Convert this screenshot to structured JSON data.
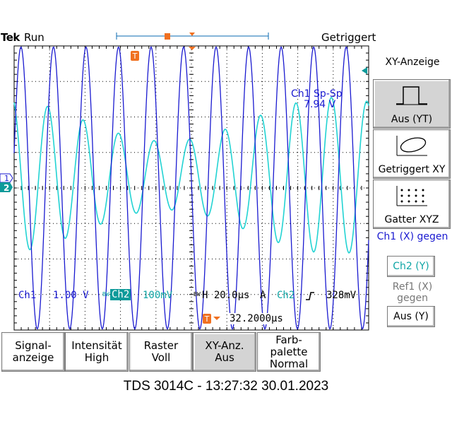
{
  "header": {
    "brand": "Tek",
    "run_state": "Run",
    "trigger_state": "Getriggert"
  },
  "measurement": {
    "label": "Ch1 Sp-Sp",
    "value": "7.94 V"
  },
  "readouts": {
    "ch1_label": "Ch1",
    "ch1_scale": "1.00 V",
    "ch2_prefix": "BW",
    "ch2_label": "Ch2",
    "ch2_scale": "100mV",
    "bw_prefix": "BW",
    "horiz": "H 20.0µs",
    "trig_mode": "A",
    "trig_source": "Ch2",
    "trig_slope_icon": "rising-edge-icon",
    "trig_level": "328mV",
    "trig_pos": "32.2000µs"
  },
  "markers": {
    "ch1": "1",
    "ch2": "2",
    "trigger": "T"
  },
  "side_menu": {
    "title": "XY-Anzeige",
    "buttons": [
      {
        "label": "Aus (YT)",
        "icon": "square-wave-icon",
        "selected": true
      },
      {
        "label": "Getriggert XY",
        "icon": "ellipse-icon",
        "selected": false
      },
      {
        "label": "Gatter XYZ",
        "icon": "dot-grid-icon",
        "selected": false
      }
    ],
    "ch1_text": "Ch1 (X) gegen",
    "ch1_value": "Ch2 (Y)",
    "ref1_text": "Ref1 (X) gegen",
    "ref1_value": "Aus (Y)"
  },
  "bottom_menu": [
    {
      "line1": "Signal-",
      "line2": "anzeige"
    },
    {
      "line1": "Intensität",
      "line2": "High"
    },
    {
      "line1": "Raster",
      "line2": "Voll"
    },
    {
      "line1": "XY-Anz.",
      "line2": "Aus",
      "selected": true
    },
    {
      "line1": "Farb-",
      "line2": "palette",
      "line3": "Normal"
    }
  ],
  "footer": "TDS 3014C - 13:27:32   30.01.2023",
  "colors": {
    "ch1": "#1a1ad0",
    "ch2": "#22d3d3",
    "grid": "#000000",
    "trigger": "#f07020"
  },
  "waveforms": {
    "ch1": {
      "cycles_on_screen": 10.9,
      "amplitude_divs": 3.97
    },
    "ch2": {
      "cycles_on_screen": 10.0,
      "amplitude_divs": 2.2
    }
  }
}
